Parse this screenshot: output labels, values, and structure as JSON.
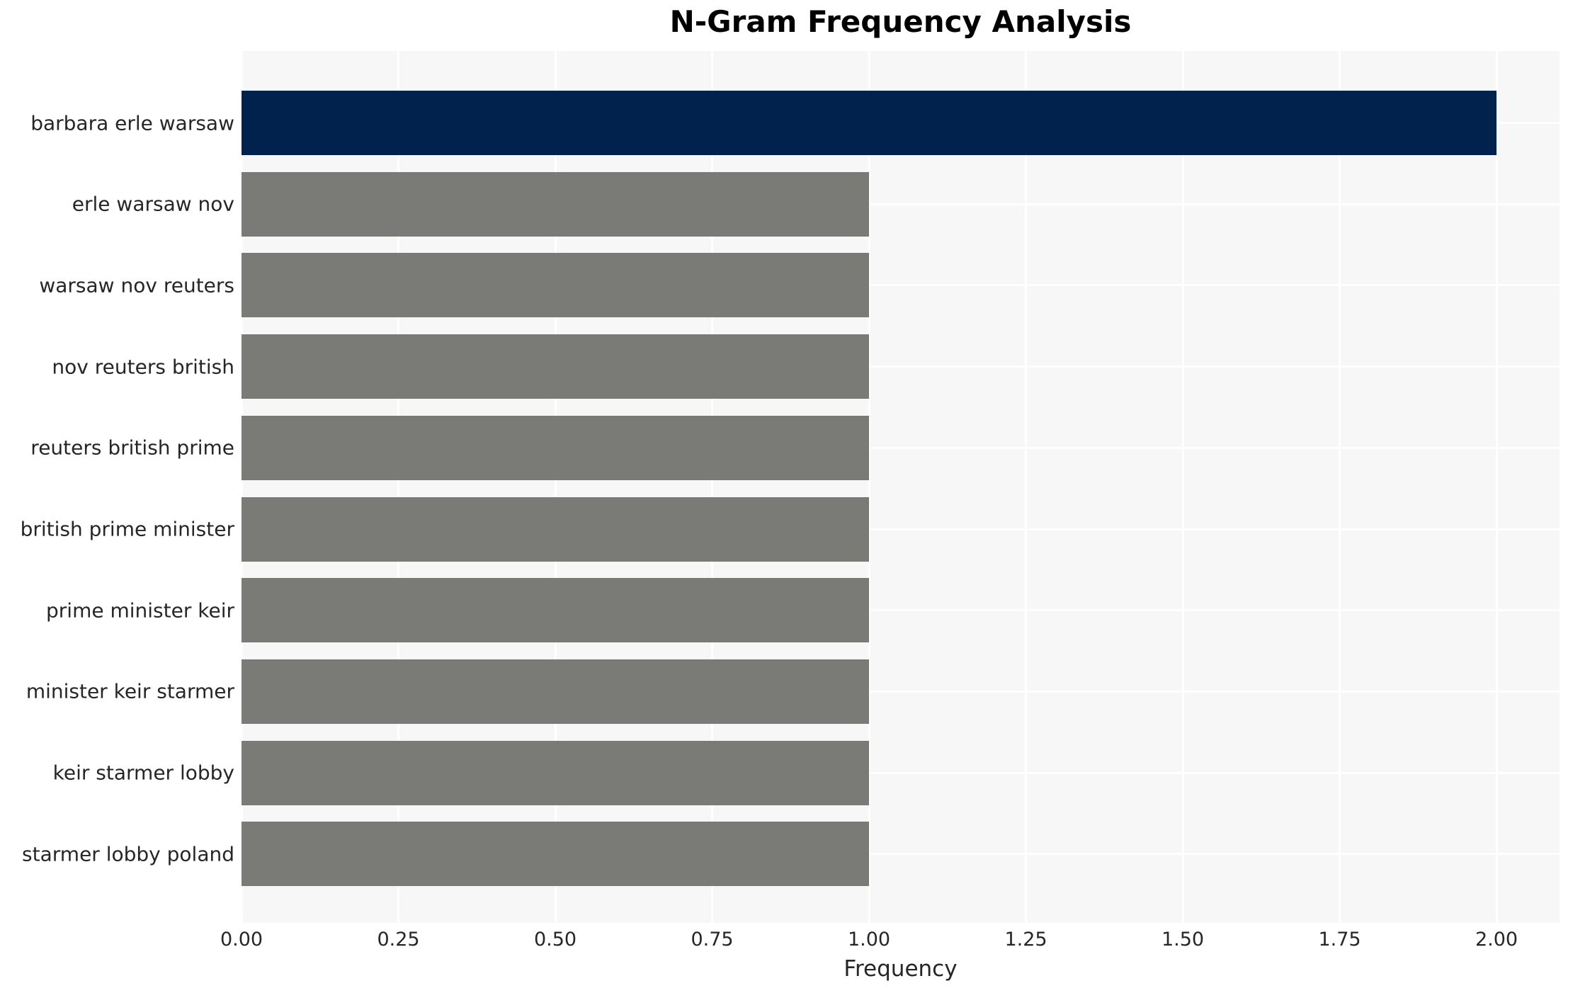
{
  "chart_data": {
    "type": "bar",
    "orientation": "horizontal",
    "title": "N-Gram Frequency Analysis",
    "xlabel": "Frequency",
    "ylabel": "",
    "categories": [
      "barbara erle warsaw",
      "erle warsaw nov",
      "warsaw nov reuters",
      "nov reuters british",
      "reuters british prime",
      "british prime minister",
      "prime minister keir",
      "minister keir starmer",
      "keir starmer lobby",
      "starmer lobby poland"
    ],
    "values": [
      2,
      1,
      1,
      1,
      1,
      1,
      1,
      1,
      1,
      1
    ],
    "xlim": [
      0,
      2.1
    ],
    "xtick_values": [
      0.0,
      0.25,
      0.5,
      0.75,
      1.0,
      1.25,
      1.5,
      1.75,
      2.0
    ],
    "xtick_labels": [
      "0.00",
      "0.25",
      "0.50",
      "0.75",
      "1.00",
      "1.25",
      "1.50",
      "1.75",
      "2.00"
    ],
    "grid": true,
    "legend": false,
    "colors": {
      "highlight_bar": "#00224d",
      "default_bar": "#7a7a77",
      "panel_background": "#f7f7f7",
      "gridline": "#ffffff",
      "tick_text": "#262626",
      "title_text": "#000000"
    },
    "bar_colors": [
      "#00224d",
      "#7a7a77",
      "#7a7a77",
      "#7a7a77",
      "#7a7a77",
      "#7a7a77",
      "#7a7a77",
      "#7a7a77",
      "#7a7a77",
      "#7a7a77"
    ]
  }
}
